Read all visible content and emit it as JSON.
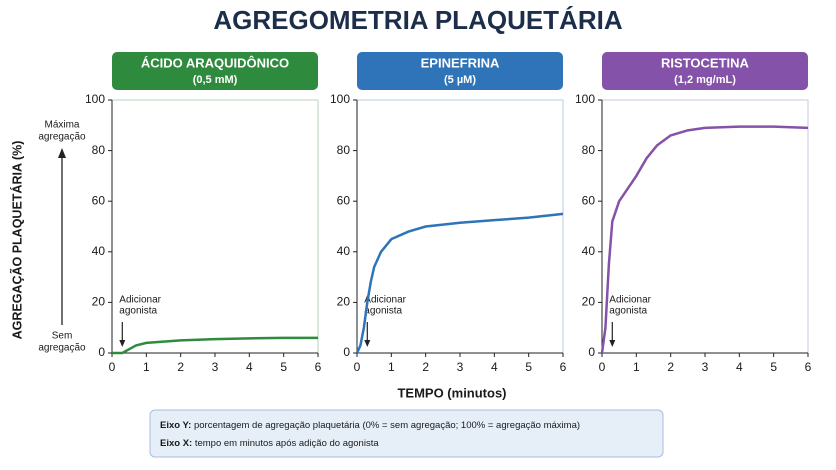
{
  "title": "AGREGOMETRIA PLAQUETÁRIA",
  "ylabel": "AGREGAÇÃO PLAQUETÁRIA (%)",
  "xlabel": "TEMPO (minutos)",
  "y_annotations": {
    "top": [
      "Máxima",
      "agregação"
    ],
    "bottom": [
      "Sem",
      "agregação"
    ]
  },
  "notes": [
    {
      "key": "Eixo Y:",
      "text": "porcentagem de agregação plaquetária (0% = sem agregação; 100% = agregação máxima)"
    },
    {
      "key": "Eixo X:",
      "text": "tempo em minutos após adição do agonista"
    }
  ],
  "chart_data": [
    {
      "type": "line",
      "title": "ÁCIDO ARAQUIDÔNICO",
      "subtitle": "(0,5 mM)",
      "color": "#2e8b3e",
      "x": [
        0,
        0.3,
        0.5,
        0.7,
        1,
        1.5,
        2,
        3,
        4,
        5,
        6
      ],
      "values": [
        0,
        0,
        1.5,
        3,
        4,
        4.5,
        5,
        5.5,
        5.8,
        6,
        6
      ],
      "xlim": [
        0,
        6
      ],
      "ylim": [
        0,
        100
      ],
      "xticks": [
        0,
        1,
        2,
        3,
        4,
        5,
        6
      ],
      "yticks": [
        0,
        20,
        40,
        60,
        80,
        100
      ],
      "annotation": {
        "x": 0.3,
        "lines": [
          "Adicionar",
          "agonista"
        ]
      }
    },
    {
      "type": "line",
      "title": "EPINEFRINA",
      "subtitle": "(5 µM)",
      "color": "#2f74b8",
      "x": [
        0,
        0.1,
        0.2,
        0.3,
        0.4,
        0.5,
        0.7,
        1,
        1.5,
        2,
        3,
        4,
        5,
        6
      ],
      "values": [
        0,
        3,
        10,
        20,
        28,
        34,
        40,
        45,
        48,
        50,
        51.5,
        52.5,
        53.5,
        55
      ],
      "xlim": [
        0,
        6
      ],
      "ylim": [
        0,
        100
      ],
      "xticks": [
        0,
        1,
        2,
        3,
        4,
        5,
        6
      ],
      "yticks": [
        0,
        20,
        40,
        60,
        80,
        100
      ],
      "annotation": {
        "x": 0.3,
        "lines": [
          "Adicionar",
          "agonista"
        ]
      }
    },
    {
      "type": "line",
      "title": "RISTOCETINA",
      "subtitle": "(1,2 mg/mL)",
      "color": "#8452a8",
      "x": [
        0,
        0.1,
        0.2,
        0.3,
        0.5,
        0.8,
        1,
        1.3,
        1.6,
        2,
        2.5,
        3,
        4,
        5,
        6
      ],
      "values": [
        0,
        10,
        35,
        52,
        60,
        66,
        70,
        77,
        82,
        86,
        88,
        89,
        89.5,
        89.5,
        89
      ],
      "xlim": [
        0,
        6
      ],
      "ylim": [
        0,
        100
      ],
      "xticks": [
        0,
        1,
        2,
        3,
        4,
        5,
        6
      ],
      "yticks": [
        0,
        20,
        40,
        60,
        80,
        100
      ],
      "annotation": {
        "x": 0.3,
        "lines": [
          "Adicionar",
          "agonista"
        ]
      }
    }
  ]
}
